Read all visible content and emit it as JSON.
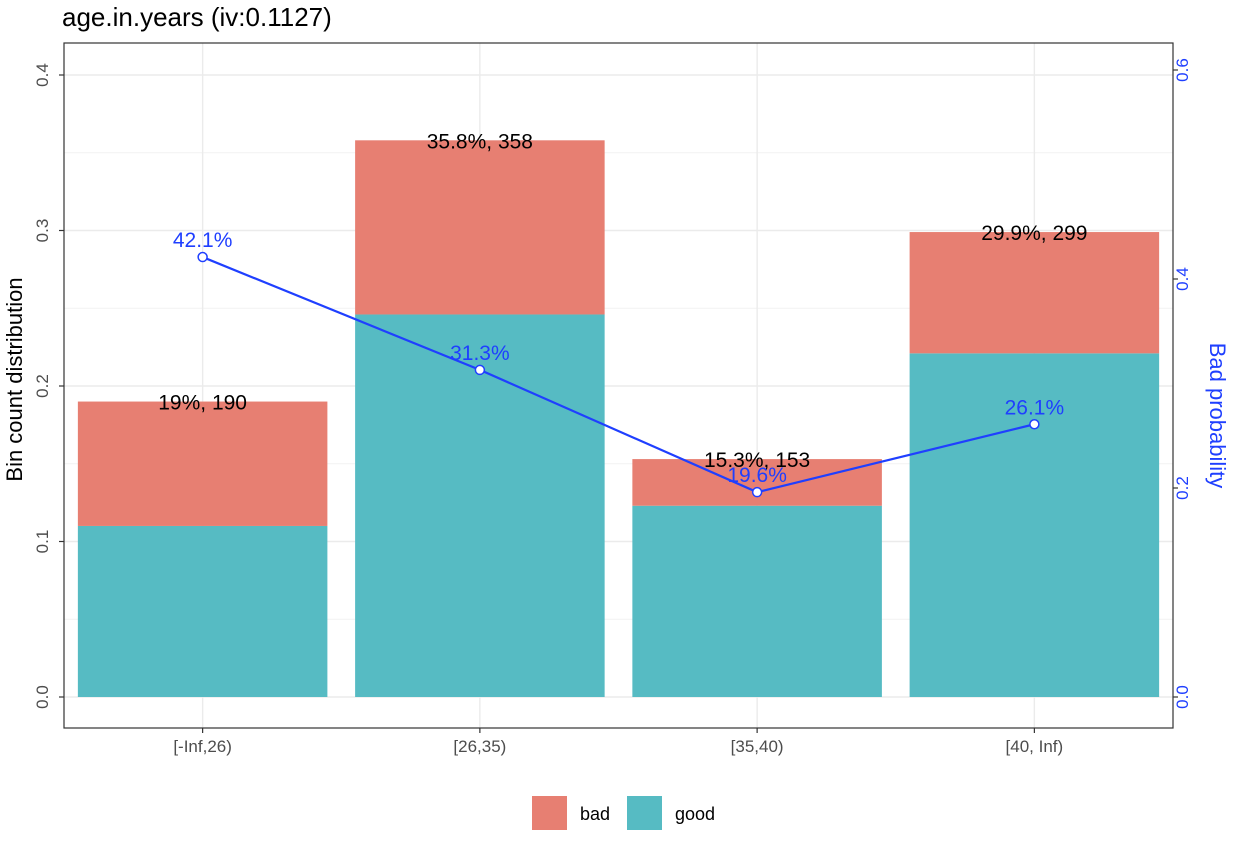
{
  "chart_data": {
    "type": "bar",
    "title": "age.in.years  (iv:0.1127)",
    "ylabel": "Bin count distribution",
    "y2label": "Bad probability",
    "ylim": [
      0,
      0.42
    ],
    "y2lim": [
      0,
      0.63
    ],
    "yticks": [
      "0.0",
      "0.1",
      "0.2",
      "0.3",
      "0.4"
    ],
    "y2ticks": [
      "0.0",
      "0.2",
      "0.4",
      "0.6"
    ],
    "categories": [
      "[-Inf,26)",
      "[26,35)",
      "[35,40)",
      "[40, Inf)"
    ],
    "stacked": true,
    "series": [
      {
        "name": "good",
        "color": "#56BBC3",
        "values": [
          0.11,
          0.246,
          0.123,
          0.221
        ]
      },
      {
        "name": "bad",
        "color": "#E77F72",
        "values": [
          0.08,
          0.112,
          0.03,
          0.078
        ]
      }
    ],
    "totals": [
      0.19,
      0.358,
      0.153,
      0.299
    ],
    "bar_labels": [
      "19%, 190",
      "35.8%, 358",
      "15.3%, 153",
      "29.9%, 299"
    ],
    "bad_probability": {
      "color": "#1f3fff",
      "values": [
        0.421,
        0.313,
        0.196,
        0.261
      ],
      "labels": [
        "42.1%",
        "31.3%",
        "19.6%",
        "26.1%"
      ]
    },
    "legend": {
      "position": "bottom",
      "entries": [
        "bad",
        "good"
      ]
    },
    "grid": true
  }
}
